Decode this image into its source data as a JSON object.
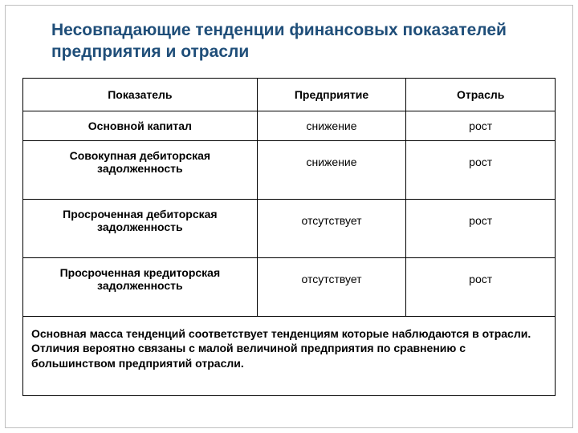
{
  "title": "Несовпадающие тенденции финансовых показателей предприятия и отрасли",
  "table": {
    "columns": [
      "Показатель",
      "Предприятие",
      "Отрасль"
    ],
    "col_widths_pct": [
      44,
      28,
      28
    ],
    "rows": [
      {
        "indicator": "Основной капитал",
        "enterprise": "снижение",
        "industry": "рост"
      },
      {
        "indicator": "Совокупная дебиторская задолженность",
        "enterprise": "снижение",
        "industry": "рост"
      },
      {
        "indicator": "Просроченная дебиторская задолженность",
        "enterprise": "отсутствует",
        "industry": "рост"
      },
      {
        "indicator": "Просроченная кредиторская задолженность",
        "enterprise": "отсутствует",
        "industry": "рост"
      }
    ],
    "summary": "Основная масса тенденций соответствует тенденциям которые наблюдаются в отрасли. Отличия вероятно связаны с малой величиной предприятия по сравнению с большинством предприятий отрасли.",
    "border_color": "#000000",
    "header_fontsize": 14,
    "cell_fontsize": 14,
    "title_color": "#1f4e79",
    "title_fontsize": 21,
    "background_color": "#ffffff"
  }
}
